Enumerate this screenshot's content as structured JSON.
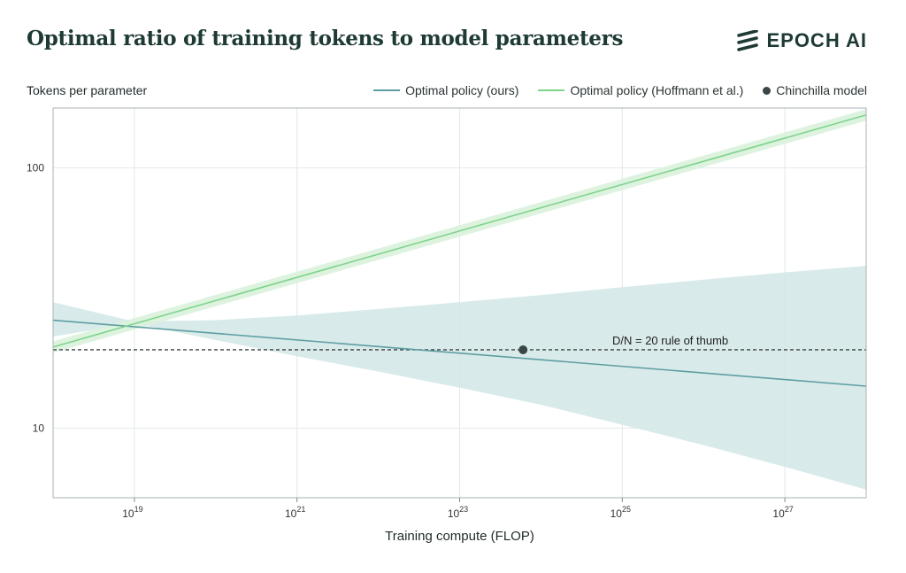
{
  "header": {
    "title": "Optimal ratio of training tokens to model parameters",
    "brand": "EPOCH AI"
  },
  "colors": {
    "ours": "#5e9ea3",
    "hoffmann": "#7fd48b",
    "chinchilla": "#3a4646",
    "ours_band": "#d2e6e6",
    "hoffmann_band": "#d9f2dc",
    "rule": "#3a4040",
    "grid": "#e3e8e8",
    "brand": "#1d3a34"
  },
  "chart_data": {
    "type": "line",
    "ylabel": "Tokens per parameter",
    "xlabel": "Training compute (FLOP)",
    "x_scale": "log10",
    "y_scale": "log10",
    "xlim_log10": [
      18.0,
      28.0
    ],
    "ylim": [
      5.4,
      170
    ],
    "x_ticks": [
      {
        "base": "10",
        "exp": "19",
        "log10": 19
      },
      {
        "base": "10",
        "exp": "21",
        "log10": 21
      },
      {
        "base": "10",
        "exp": "23",
        "log10": 23
      },
      {
        "base": "10",
        "exp": "25",
        "log10": 25
      },
      {
        "base": "10",
        "exp": "27",
        "log10": 27
      }
    ],
    "y_ticks": [
      {
        "label": "10",
        "value": 10
      },
      {
        "label": "100",
        "value": 100
      }
    ],
    "series": [
      {
        "name": "Optimal policy (ours)",
        "x_log10": [
          18.0,
          28.0
        ],
        "y": [
          26,
          14.5
        ],
        "band_x_log10": [
          18.0,
          19.0,
          20.0,
          21.0,
          22.0,
          23.0,
          24.0,
          25.0,
          26.0,
          27.0,
          28.0
        ],
        "band_upper": [
          30.5,
          25.7,
          26.0,
          27.1,
          28.7,
          30.5,
          32.5,
          34.8,
          37.2,
          39.7,
          42.0
        ],
        "band_lower": [
          22.5,
          25.3,
          21.8,
          18.9,
          16.5,
          14.3,
          12.3,
          10.3,
          8.6,
          7.1,
          5.8
        ]
      },
      {
        "name": "Optimal policy (Hoffmann et al.)",
        "x_log10": [
          18.0,
          28.0
        ],
        "y": [
          20.5,
          160
        ],
        "band_width_log10": 0.022
      }
    ],
    "points": [
      {
        "name": "Chinchilla model",
        "x_log10": 23.78,
        "y": 20
      }
    ],
    "reference_line": {
      "y": 20,
      "label": "D/N = 20 rule of thumb"
    },
    "grid": true,
    "legend_position": "top-right"
  }
}
